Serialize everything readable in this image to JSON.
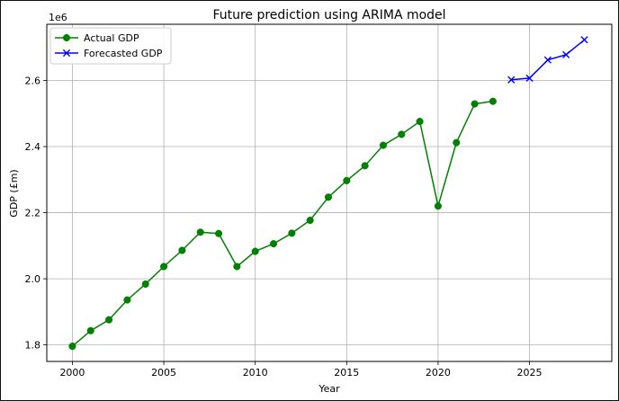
{
  "chart_data": {
    "type": "line",
    "title": "Future prediction using ARIMA model",
    "xlabel": "Year",
    "ylabel": "GDP (£m)",
    "y_offset_label": "1e6",
    "xlim": [
      1998.6,
      2029.5
    ],
    "ylim": [
      1750000,
      2770000
    ],
    "x_ticks": [
      2000,
      2005,
      2010,
      2015,
      2020,
      2025
    ],
    "x_tick_labels": [
      "2000",
      "2005",
      "2010",
      "2015",
      "2020",
      "2025"
    ],
    "y_ticks": [
      1800000,
      2000000,
      2200000,
      2400000,
      2600000
    ],
    "y_tick_labels": [
      "1.8",
      "2.0",
      "2.2",
      "2.4",
      "2.6"
    ],
    "grid": true,
    "legend_position": "top-left",
    "series": [
      {
        "name": "Actual GDP",
        "color": "#008000",
        "marker": "circle",
        "x": [
          2000,
          2001,
          2002,
          2003,
          2004,
          2005,
          2006,
          2007,
          2008,
          2009,
          2010,
          2011,
          2012,
          2013,
          2014,
          2015,
          2016,
          2017,
          2018,
          2019,
          2020,
          2021,
          2022,
          2023
        ],
        "y": [
          1796000,
          1843000,
          1876000,
          1936000,
          1984000,
          2037000,
          2086000,
          2141000,
          2137000,
          2037000,
          2083000,
          2106000,
          2138000,
          2177000,
          2247000,
          2297000,
          2342000,
          2404000,
          2437000,
          2476000,
          2220000,
          2412000,
          2529000,
          2537000
        ]
      },
      {
        "name": "Forecasted GDP",
        "color": "#0000ff",
        "marker": "x",
        "x": [
          2024,
          2025,
          2026,
          2027,
          2028
        ],
        "y": [
          2602000,
          2607000,
          2662000,
          2678000,
          2723000
        ]
      }
    ]
  }
}
